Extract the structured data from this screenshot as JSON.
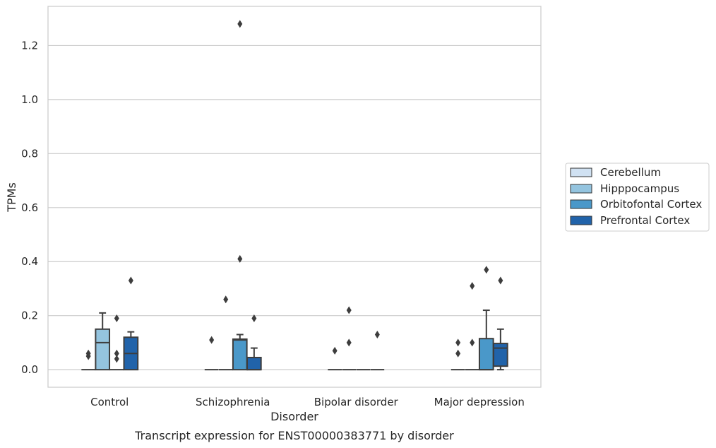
{
  "chart_data": {
    "type": "box",
    "caption": "Transcript expression for ENST00000383771 by disorder",
    "xlabel": "Disorder",
    "ylabel": "TPMs",
    "ylim": [
      -0.065,
      1.345
    ],
    "yticks": [
      0.0,
      0.2,
      0.4,
      0.6,
      0.8,
      1.0,
      1.2
    ],
    "ytick_labels": [
      "0.0",
      "0.2",
      "0.4",
      "0.6",
      "0.8",
      "1.0",
      "1.2"
    ],
    "grid": "horizontal",
    "legend_position": "right",
    "categories": [
      "Control",
      "Schizophrenia",
      "Bipolar disorder",
      "Major depression"
    ],
    "series": [
      {
        "name": "Cerebellum",
        "color": "#d0e1f2",
        "boxes": [
          {
            "q1": 0,
            "median": 0,
            "q3": 0,
            "whisker_low": 0,
            "whisker_high": 0,
            "outliers": [
              0.05,
              0.06
            ]
          },
          {
            "q1": 0,
            "median": 0,
            "q3": 0,
            "whisker_low": 0,
            "whisker_high": 0,
            "outliers": [
              0.11
            ]
          },
          {
            "q1": 0,
            "median": 0,
            "q3": 0,
            "whisker_low": 0,
            "whisker_high": 0,
            "outliers": [
              0.07
            ]
          },
          {
            "q1": 0,
            "median": 0,
            "q3": 0,
            "whisker_low": 0,
            "whisker_high": 0,
            "outliers": [
              0.06,
              0.1
            ]
          }
        ]
      },
      {
        "name": "Hipppocampus",
        "color": "#94c4df",
        "boxes": [
          {
            "q1": 0,
            "median": 0.1,
            "q3": 0.15,
            "whisker_low": 0,
            "whisker_high": 0.21,
            "outliers": []
          },
          {
            "q1": 0,
            "median": 0,
            "q3": 0,
            "whisker_low": 0,
            "whisker_high": 0,
            "outliers": [
              0.26
            ]
          },
          {
            "q1": 0,
            "median": 0,
            "q3": 0,
            "whisker_low": 0,
            "whisker_high": 0,
            "outliers": [
              0.1,
              0.22
            ]
          },
          {
            "q1": 0,
            "median": 0,
            "q3": 0,
            "whisker_low": 0,
            "whisker_high": 0,
            "outliers": [
              0.1,
              0.31
            ]
          }
        ]
      },
      {
        "name": "Orbitofontal Cortex",
        "color": "#4a98c9",
        "boxes": [
          {
            "q1": 0,
            "median": 0,
            "q3": 0,
            "whisker_low": 0,
            "whisker_high": 0,
            "outliers": [
              0.04,
              0.06,
              0.19
            ]
          },
          {
            "q1": 0,
            "median": 0.11,
            "q3": 0.113,
            "whisker_low": 0,
            "whisker_high": 0.13,
            "outliers": [
              0.41,
              1.28
            ]
          },
          {
            "q1": 0,
            "median": 0,
            "q3": 0,
            "whisker_low": 0,
            "whisker_high": 0,
            "outliers": []
          },
          {
            "q1": 0,
            "median": 0,
            "q3": 0.115,
            "whisker_low": 0,
            "whisker_high": 0.22,
            "outliers": [
              0.37
            ]
          }
        ]
      },
      {
        "name": "Prefrontal Cortex",
        "color": "#2163aa",
        "boxes": [
          {
            "q1": 0,
            "median": 0.06,
            "q3": 0.12,
            "whisker_low": 0,
            "whisker_high": 0.14,
            "outliers": [
              0.33
            ]
          },
          {
            "q1": 0,
            "median": 0,
            "q3": 0.045,
            "whisker_low": 0,
            "whisker_high": 0.08,
            "outliers": [
              0.19
            ]
          },
          {
            "q1": 0,
            "median": 0,
            "q3": 0,
            "whisker_low": 0,
            "whisker_high": 0,
            "outliers": [
              0.13
            ]
          },
          {
            "q1": 0.013,
            "median": 0.08,
            "q3": 0.097,
            "whisker_low": 0,
            "whisker_high": 0.15,
            "outliers": [
              0.33
            ]
          }
        ]
      }
    ]
  }
}
